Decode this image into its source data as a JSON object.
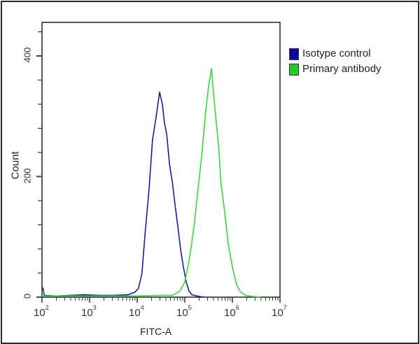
{
  "chart_data": {
    "type": "line",
    "title": "",
    "xlabel": "FITC-A",
    "ylabel": "Count",
    "xscale": "log",
    "xlim_log10": [
      2,
      7
    ],
    "ylim": [
      0,
      440
    ],
    "x_ticks": [
      "10^2",
      "10^3",
      "10^4",
      "10^5",
      "10^6",
      "10^7"
    ],
    "x_tick_labels": [
      {
        "base": "10",
        "exp": "2"
      },
      {
        "base": "10",
        "exp": "3"
      },
      {
        "base": "10",
        "exp": "4"
      },
      {
        "base": "10",
        "exp": "5"
      },
      {
        "base": "10",
        "exp": "6"
      },
      {
        "base": "10",
        "exp": "7"
      }
    ],
    "y_ticks": [
      0,
      200,
      400
    ],
    "y_tick_labels": [
      "0",
      "200",
      "400"
    ],
    "legend_position": "upper right, outside plot",
    "grid": false,
    "series": [
      {
        "name": "Isotype control",
        "color": "#1a1aa6",
        "x_log10": [
          2.0,
          2.02,
          2.05,
          2.3,
          2.6,
          2.9,
          3.2,
          3.5,
          3.8,
          3.95,
          4.03,
          4.1,
          4.17,
          4.25,
          4.32,
          4.4,
          4.47,
          4.53,
          4.57,
          4.62,
          4.68,
          4.74,
          4.8,
          4.85,
          4.91,
          4.97,
          5.03,
          5.09,
          5.15,
          5.25,
          5.4
        ],
        "counts": [
          15,
          15,
          3,
          2,
          3,
          4,
          3,
          3,
          4,
          8,
          15,
          40,
          110,
          180,
          260,
          300,
          340,
          320,
          290,
          270,
          220,
          190,
          150,
          120,
          80,
          50,
          25,
          10,
          4,
          2,
          0
        ]
      },
      {
        "name": "Primary antibody",
        "color": "#33dd33",
        "x_log10": [
          2.0,
          3.0,
          4.0,
          4.5,
          4.74,
          4.9,
          5.0,
          5.09,
          5.2,
          5.28,
          5.35,
          5.43,
          5.5,
          5.56,
          5.6,
          5.65,
          5.71,
          5.76,
          5.84,
          5.91,
          6.0,
          6.09,
          6.18,
          6.28,
          6.43,
          6.6
        ],
        "counts": [
          2,
          2,
          2,
          3,
          3,
          10,
          25,
          60,
          120,
          180,
          230,
          300,
          350,
          379,
          340,
          300,
          250,
          190,
          140,
          90,
          50,
          20,
          8,
          3,
          1,
          0
        ]
      }
    ]
  },
  "legend": {
    "items": [
      {
        "label": "Isotype control",
        "color": "#0a0aa0"
      },
      {
        "label": "Primary antibody",
        "color": "#22cc22"
      }
    ]
  },
  "axes": {
    "xlabel": "FITC-A",
    "ylabel": "Count"
  }
}
